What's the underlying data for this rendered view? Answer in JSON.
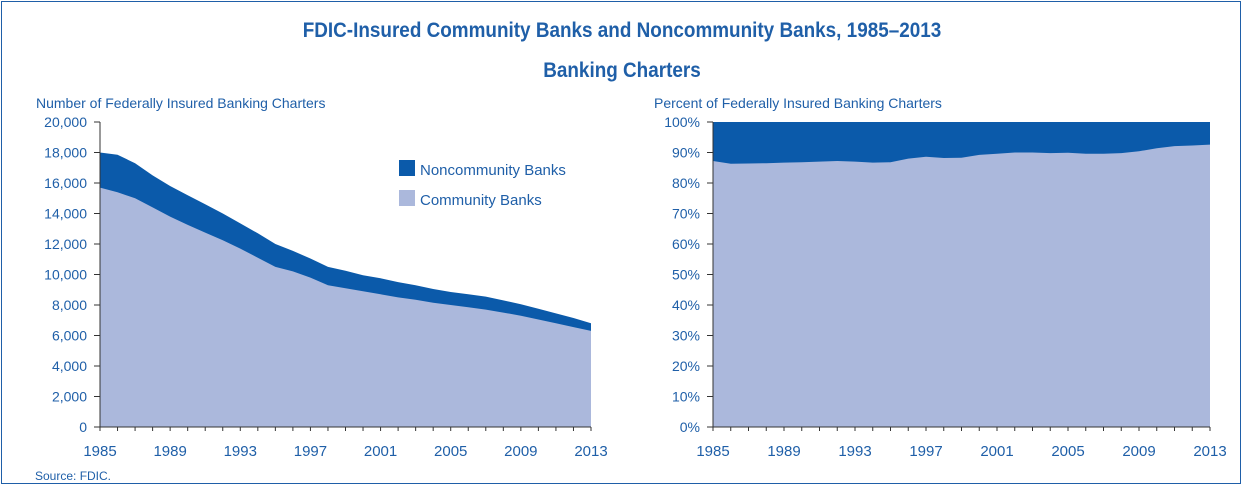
{
  "title": "FDIC-Insured Community Banks and Noncommunity Banks, 1985–2013",
  "subtitle": "Banking Charters",
  "source": "Source: FDIC.",
  "colors": {
    "text": "#1f5fa8",
    "noncommunity": "#0b5aaa",
    "community": "#abb8dc",
    "axis": "#333333"
  },
  "chart_data": [
    {
      "type": "area",
      "stacked": true,
      "title": "Number of Federally Insured Banking Charters",
      "x": [
        1985,
        1986,
        1987,
        1988,
        1989,
        1990,
        1991,
        1992,
        1993,
        1994,
        1995,
        1996,
        1997,
        1998,
        1999,
        2000,
        2001,
        2002,
        2003,
        2004,
        2005,
        2006,
        2007,
        2008,
        2009,
        2010,
        2011,
        2012,
        2013
      ],
      "xticks": [
        "1985",
        "1989",
        "1993",
        "1997",
        "2001",
        "2005",
        "2009",
        "2013"
      ],
      "ylim": [
        0,
        20000
      ],
      "yticks": [
        "0",
        "2,000",
        "4,000",
        "6,000",
        "8,000",
        "10,000",
        "12,000",
        "14,000",
        "16,000",
        "18,000",
        "20,000"
      ],
      "legend": "top-right",
      "series": [
        {
          "name": "Community Banks",
          "values": [
            15700,
            15400,
            15000,
            14400,
            13800,
            13250,
            12750,
            12250,
            11700,
            11100,
            10500,
            10200,
            9800,
            9300,
            9100,
            8900,
            8700,
            8500,
            8350,
            8150,
            8000,
            7850,
            7700,
            7500,
            7300,
            7050,
            6800,
            6550,
            6300
          ]
        },
        {
          "name": "Noncommunity Banks",
          "values": [
            2300,
            2450,
            2300,
            2100,
            2000,
            1950,
            1850,
            1750,
            1650,
            1600,
            1500,
            1350,
            1250,
            1200,
            1150,
            1050,
            1050,
            1000,
            950,
            900,
            850,
            850,
            850,
            800,
            750,
            700,
            650,
            600,
            500
          ]
        }
      ]
    },
    {
      "type": "area",
      "stacked": true,
      "title": "Percent of Federally Insured Banking Charters",
      "x": [
        1985,
        1986,
        1987,
        1988,
        1989,
        1990,
        1991,
        1992,
        1993,
        1994,
        1995,
        1996,
        1997,
        1998,
        1999,
        2000,
        2001,
        2002,
        2003,
        2004,
        2005,
        2006,
        2007,
        2008,
        2009,
        2010,
        2011,
        2012,
        2013
      ],
      "xticks": [
        "1985",
        "1989",
        "1993",
        "1997",
        "2001",
        "2005",
        "2009",
        "2013"
      ],
      "ylim": [
        0,
        100
      ],
      "yticks": [
        "0%",
        "10%",
        "20%",
        "30%",
        "40%",
        "50%",
        "60%",
        "70%",
        "80%",
        "90%",
        "100%"
      ],
      "series": [
        {
          "name": "Community Banks",
          "values": [
            87.2,
            86.3,
            86.4,
            86.5,
            86.7,
            86.8,
            87.0,
            87.2,
            87.0,
            86.7,
            86.8,
            88.0,
            88.6,
            88.2,
            88.3,
            89.2,
            89.6,
            90.0,
            90.0,
            89.8,
            89.9,
            89.6,
            89.6,
            89.8,
            90.4,
            91.4,
            92.1,
            92.3,
            92.6
          ]
        },
        {
          "name": "Noncommunity Banks",
          "values": [
            12.8,
            13.7,
            13.6,
            13.5,
            13.3,
            13.2,
            13.0,
            12.8,
            13.0,
            13.3,
            13.2,
            12.0,
            11.4,
            11.8,
            11.7,
            10.8,
            10.4,
            10.0,
            10.0,
            10.2,
            10.1,
            10.4,
            10.4,
            10.2,
            9.6,
            8.6,
            7.9,
            7.7,
            7.4
          ]
        }
      ]
    }
  ]
}
